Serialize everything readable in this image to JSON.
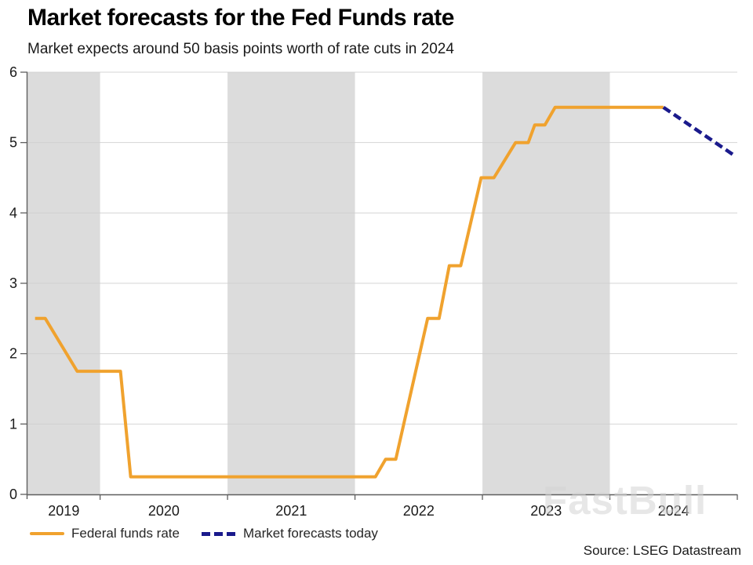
{
  "watermark": "FastBull",
  "source": "Source: LSEG Datastream",
  "chart_data": {
    "type": "line",
    "title": "Market forecasts for the Fed Funds rate",
    "subtitle": "Market expects around 50 basis points worth of rate cuts in 2024",
    "xlabel": "",
    "ylabel": "",
    "ylim": [
      0,
      6
    ],
    "y_ticks": [
      0,
      1,
      2,
      3,
      4,
      5,
      6
    ],
    "x_domain": [
      2019.43,
      2025.0
    ],
    "x_boundary_ticks": [
      2020,
      2021,
      2022,
      2023,
      2024,
      2025
    ],
    "x_band_labels": [
      {
        "label": "2019",
        "t": 2019.715
      },
      {
        "label": "2020",
        "t": 2020.5
      },
      {
        "label": "2021",
        "t": 2021.5
      },
      {
        "label": "2022",
        "t": 2022.5
      },
      {
        "label": "2023",
        "t": 2023.5
      },
      {
        "label": "2024",
        "t": 2024.5
      }
    ],
    "shaded_bands": [
      [
        2019.43,
        2020.0
      ],
      [
        2021.0,
        2022.0
      ],
      [
        2023.0,
        2024.0
      ]
    ],
    "grid": "horizontal",
    "legend_position": "bottom-left",
    "colors": {
      "band": "#dcdcdc",
      "grid": "#d0d0d0",
      "axis": "#5f5f5f",
      "tick_text": "#1a1a1a"
    },
    "series": [
      {
        "name": "Federal funds rate",
        "color": "#F0A22E",
        "dash": false,
        "points": [
          [
            2019.49,
            2.5
          ],
          [
            2019.57,
            2.5
          ],
          [
            2019.82,
            1.75
          ],
          [
            2020.16,
            1.75
          ],
          [
            2020.24,
            0.25
          ],
          [
            2022.16,
            0.25
          ],
          [
            2022.24,
            0.5
          ],
          [
            2022.32,
            0.5
          ],
          [
            2022.57,
            2.5
          ],
          [
            2022.66,
            2.5
          ],
          [
            2022.74,
            3.25
          ],
          [
            2022.83,
            3.25
          ],
          [
            2022.99,
            4.5
          ],
          [
            2023.09,
            4.5
          ],
          [
            2023.26,
            5.0
          ],
          [
            2023.36,
            5.0
          ],
          [
            2023.41,
            5.25
          ],
          [
            2023.49,
            5.25
          ],
          [
            2023.57,
            5.5
          ],
          [
            2024.42,
            5.5
          ]
        ]
      },
      {
        "name": "Market forecasts today",
        "color": "#1A1A8C",
        "dash": true,
        "points": [
          [
            2024.42,
            5.5
          ],
          [
            2024.99,
            4.8
          ]
        ]
      }
    ]
  }
}
